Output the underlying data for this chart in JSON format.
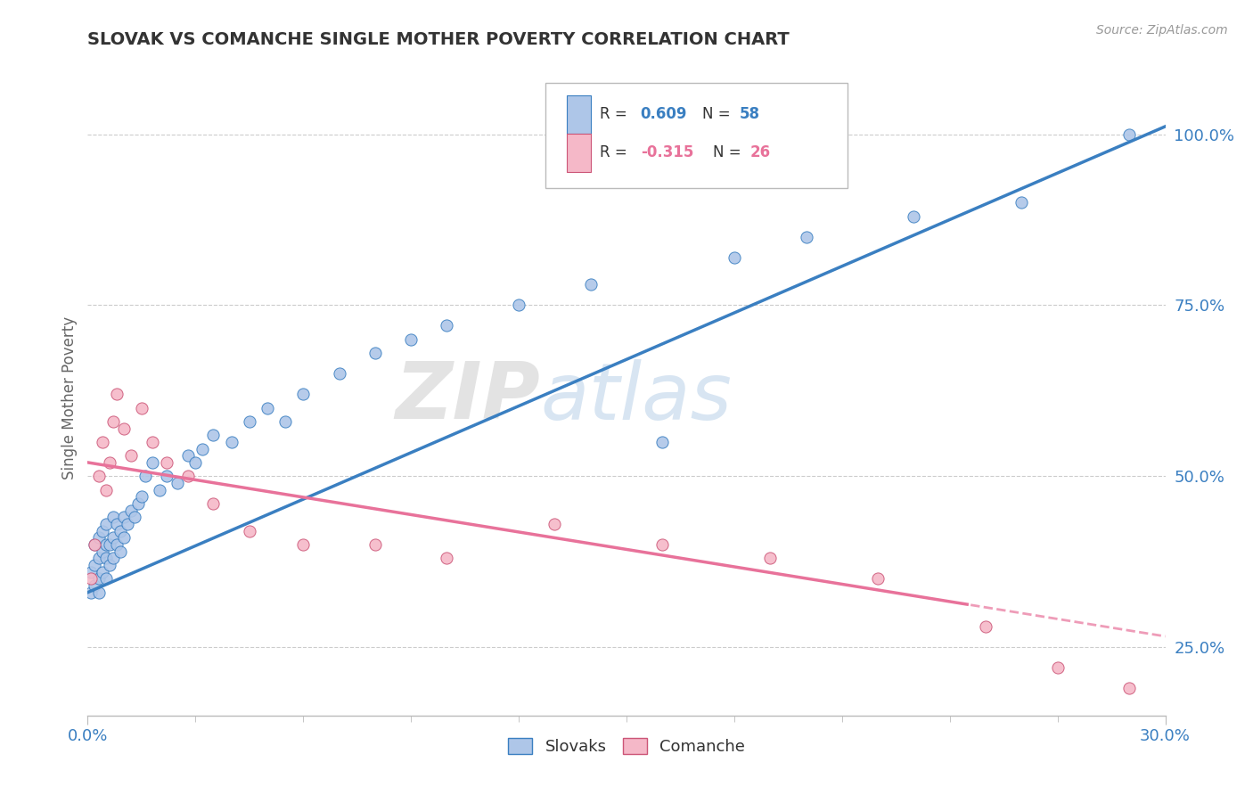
{
  "title": "SLOVAK VS COMANCHE SINGLE MOTHER POVERTY CORRELATION CHART",
  "source_text": "Source: ZipAtlas.com",
  "ylabel": "Single Mother Poverty",
  "xlim": [
    0.0,
    0.3
  ],
  "ylim": [
    0.15,
    1.08
  ],
  "x_tick_labels": [
    "0.0%",
    "30.0%"
  ],
  "y_ticks_right": [
    0.25,
    0.5,
    0.75,
    1.0
  ],
  "y_tick_labels_right": [
    "25.0%",
    "50.0%",
    "75.0%",
    "100.0%"
  ],
  "slovak_color": "#aec6e8",
  "comanche_color": "#f5b8c8",
  "slovak_line_color": "#3a7fc1",
  "comanche_line_color": "#e8729a",
  "comanche_edge_color": "#cc5577",
  "legend_R_slovak": "0.609",
  "legend_N_slovak": "58",
  "legend_R_comanche": "-0.315",
  "legend_N_comanche": "26",
  "legend_label_slovak": "Slovaks",
  "legend_label_comanche": "Comanche",
  "watermark": "ZIPAtlas",
  "slovak_x": [
    0.001,
    0.001,
    0.002,
    0.002,
    0.002,
    0.003,
    0.003,
    0.003,
    0.003,
    0.004,
    0.004,
    0.004,
    0.005,
    0.005,
    0.005,
    0.005,
    0.006,
    0.006,
    0.007,
    0.007,
    0.007,
    0.008,
    0.008,
    0.009,
    0.009,
    0.01,
    0.01,
    0.011,
    0.012,
    0.013,
    0.014,
    0.015,
    0.016,
    0.018,
    0.02,
    0.022,
    0.025,
    0.028,
    0.03,
    0.032,
    0.035,
    0.04,
    0.045,
    0.05,
    0.055,
    0.06,
    0.07,
    0.08,
    0.09,
    0.1,
    0.12,
    0.14,
    0.16,
    0.18,
    0.2,
    0.23,
    0.26,
    0.29
  ],
  "slovak_y": [
    0.33,
    0.36,
    0.34,
    0.37,
    0.4,
    0.33,
    0.35,
    0.38,
    0.41,
    0.36,
    0.39,
    0.42,
    0.35,
    0.38,
    0.4,
    0.43,
    0.37,
    0.4,
    0.38,
    0.41,
    0.44,
    0.4,
    0.43,
    0.39,
    0.42,
    0.41,
    0.44,
    0.43,
    0.45,
    0.44,
    0.46,
    0.47,
    0.5,
    0.52,
    0.48,
    0.5,
    0.49,
    0.53,
    0.52,
    0.54,
    0.56,
    0.55,
    0.58,
    0.6,
    0.58,
    0.62,
    0.65,
    0.68,
    0.7,
    0.72,
    0.75,
    0.78,
    0.55,
    0.82,
    0.85,
    0.88,
    0.9,
    1.0
  ],
  "comanche_x": [
    0.001,
    0.002,
    0.003,
    0.004,
    0.005,
    0.006,
    0.007,
    0.008,
    0.01,
    0.012,
    0.015,
    0.018,
    0.022,
    0.028,
    0.035,
    0.045,
    0.06,
    0.08,
    0.1,
    0.13,
    0.16,
    0.19,
    0.22,
    0.25,
    0.27,
    0.29
  ],
  "comanche_y": [
    0.35,
    0.4,
    0.5,
    0.55,
    0.48,
    0.52,
    0.58,
    0.62,
    0.57,
    0.53,
    0.6,
    0.55,
    0.52,
    0.5,
    0.46,
    0.42,
    0.4,
    0.4,
    0.38,
    0.43,
    0.4,
    0.38,
    0.35,
    0.28,
    0.22,
    0.19
  ],
  "grid_color": "#cccccc",
  "background_color": "#ffffff"
}
